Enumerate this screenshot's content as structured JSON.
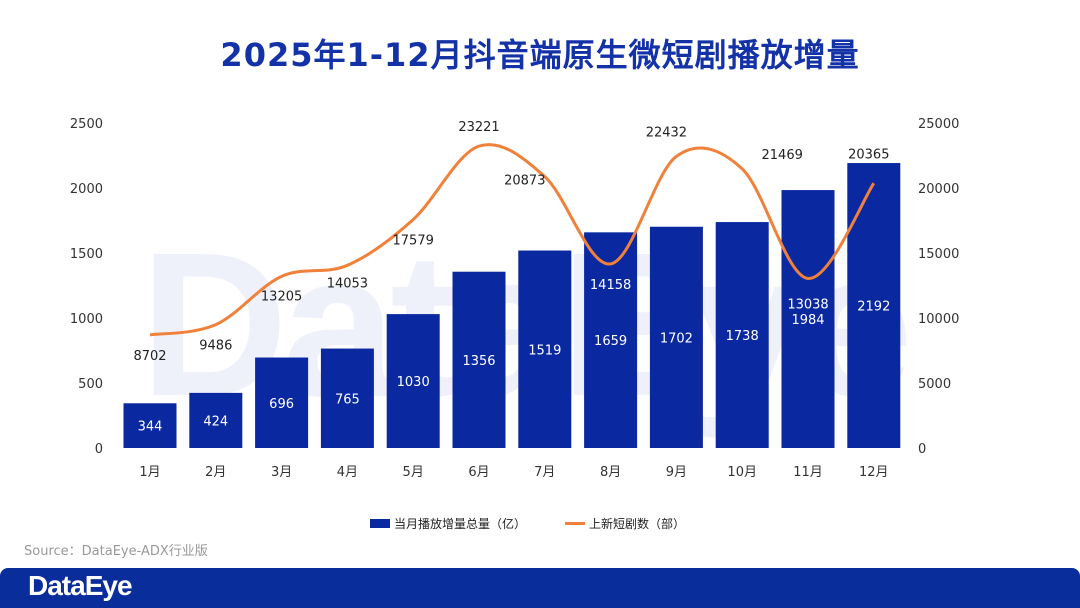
{
  "chart_data": {
    "type": "bar+line",
    "title": "2025年1-12月抖音端原生微短剧播放增量",
    "categories": [
      "1月",
      "2月",
      "3月",
      "4月",
      "5月",
      "6月",
      "7月",
      "8月",
      "9月",
      "10月",
      "11月",
      "12月"
    ],
    "series": [
      {
        "name": "当月播放增量总量（亿）",
        "type": "bar",
        "axis": "left",
        "color": "#0a28a0",
        "values": [
          344,
          424,
          696,
          765,
          1030,
          1356,
          1519,
          1659,
          1702,
          1738,
          1984,
          2192
        ]
      },
      {
        "name": "上新短剧数（部）",
        "type": "line",
        "axis": "right",
        "color": "#f0813a",
        "values": [
          8702,
          9486,
          13205,
          14053,
          17579,
          23221,
          20873,
          14158,
          22432,
          21469,
          13038,
          20365
        ]
      }
    ],
    "y_left": {
      "ylim": [
        0,
        2500
      ],
      "ticks": [
        "0",
        "500",
        "1000",
        "1500",
        "2000",
        "2500"
      ]
    },
    "y_right": {
      "ylim": [
        0,
        25000
      ],
      "ticks": [
        "0",
        "5000",
        "10000",
        "15000",
        "20000",
        "25000"
      ]
    },
    "grid": false,
    "legend": "bottom"
  },
  "source": "Source：DataEye-ADX行业版",
  "footer_logo": "DataEye",
  "watermark": "DataEye"
}
